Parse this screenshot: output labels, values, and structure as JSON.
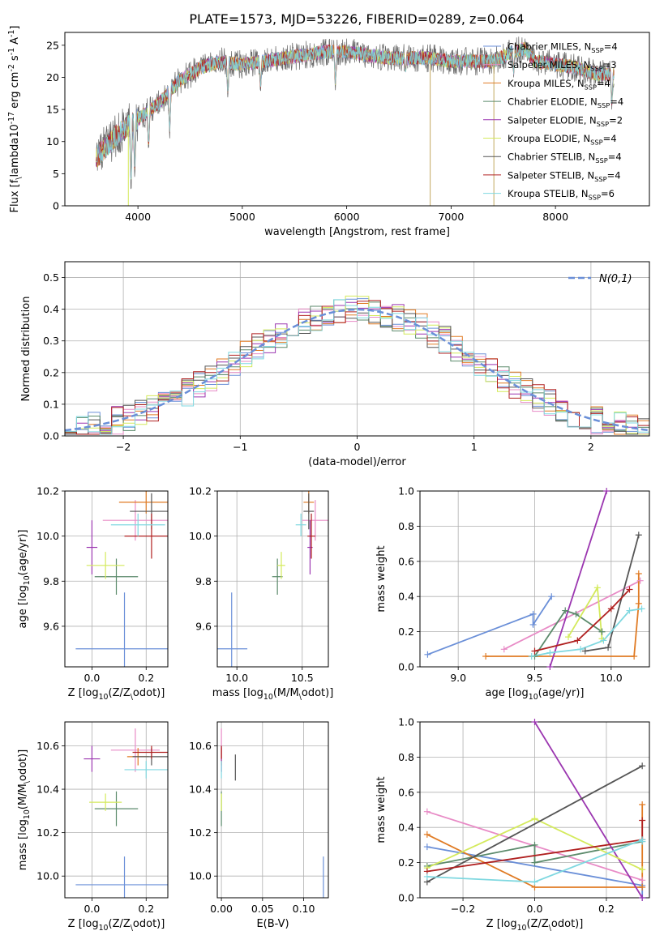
{
  "figure": {
    "title": "PLATE=1573, MJD=53226, FIBERID=0289, z=0.064"
  },
  "series": [
    {
      "name": "Chabrier MILES, N$_{SSP}$=4",
      "color": "#6a8fd8"
    },
    {
      "name": "Salpeter MILES, N$_{SSP}$=3",
      "color": "#e88bc6"
    },
    {
      "name": "Kroupa MILES, N$_{SSP}$=4",
      "color": "#e07b24"
    },
    {
      "name": "Chabrier ELODIE, N$_{SSP}$=4",
      "color": "#5b8a6b"
    },
    {
      "name": "Salpeter ELODIE, N$_{SSP}$=2",
      "color": "#9b36b0"
    },
    {
      "name": "Kroupa ELODIE, N$_{SSP}$=4",
      "color": "#d4ea5c"
    },
    {
      "name": "Chabrier STELIB, N$_{SSP}$=4",
      "color": "#555555"
    },
    {
      "name": "Salpeter STELIB, N$_{SSP}$=4",
      "color": "#b02020"
    },
    {
      "name": "Kroupa STELIB, N$_{SSP}$=6",
      "color": "#7fd8e0"
    }
  ],
  "chart_data": [
    {
      "id": "spectrum",
      "type": "line",
      "xlabel": "wavelength [Angstrom, rest frame]",
      "ylabel": "Flux [f$_\\lambda$10$^{-17}$ erg cm$^{-2}$ s$^{-1}$ A$^{-1}$]",
      "xlim": [
        3300,
        8900
      ],
      "ylim": [
        0,
        27
      ],
      "xticks": [
        4000,
        5000,
        6000,
        7000,
        8000
      ],
      "yticks": [
        0,
        5,
        10,
        15,
        20,
        25
      ],
      "grid": false,
      "legend": "upper right",
      "continuum": {
        "x": [
          3600,
          3800,
          4000,
          4200,
          4400,
          4600,
          4800,
          5000,
          5200,
          5400,
          5600,
          5800,
          6000,
          6200,
          6400,
          6600,
          6800,
          7000,
          7200,
          7400,
          7600,
          7700,
          7800,
          8000,
          8200,
          8400,
          8560
        ],
        "y": [
          7.5,
          11,
          13.5,
          16,
          19.5,
          21.5,
          22.5,
          22,
          22.5,
          23,
          23.5,
          24,
          24,
          23.5,
          23,
          23,
          23,
          22.5,
          22.5,
          22.5,
          24,
          24.5,
          22.5,
          22,
          21.5,
          20.5,
          20.5
        ]
      },
      "absorptions": [
        {
          "x": 3934,
          "y": 1.5
        },
        {
          "x": 3969,
          "y": 4
        },
        {
          "x": 4102,
          "y": 8
        },
        {
          "x": 4304,
          "y": 10.5
        },
        {
          "x": 4861,
          "y": 16.5
        },
        {
          "x": 5175,
          "y": 17.5
        },
        {
          "x": 5892,
          "y": 18
        },
        {
          "x": 6563,
          "y": 20.5
        },
        {
          "x": 7600,
          "y": 20
        },
        {
          "x": 8540,
          "y": 15
        }
      ],
      "spikes": [
        {
          "x": 3908,
          "y": 0
        },
        {
          "x": 6800,
          "y": 0
        },
        {
          "x": 7410,
          "y": 0
        }
      ]
    },
    {
      "id": "residuals",
      "type": "histogram",
      "xlabel": "(data-model)/error",
      "ylabel": "Normed distribution",
      "xlim": [
        -2.5,
        2.5
      ],
      "ylim": [
        0,
        0.55
      ],
      "xticks": [
        -2,
        -1,
        0,
        1,
        2
      ],
      "yticks": [
        0.0,
        0.1,
        0.2,
        0.3,
        0.4,
        0.5
      ],
      "grid": true,
      "legend": "upper right",
      "gaussian_label": "$\\mathcal{N}(0,1)$",
      "gaussian_color": "#6a8fd8",
      "bin_width": 0.1,
      "bin_start": -2.5
    },
    {
      "id": "age_vs_Z",
      "type": "errorbar",
      "xlabel": "Z [log$_{10}$(Z/Z$_\\odot$)]",
      "ylabel": "age  [log$_{10}$(age/yr)]",
      "xlim": [
        -0.1,
        0.28
      ],
      "ylim": [
        9.42,
        10.2
      ],
      "xticks": [
        0.0,
        0.2
      ],
      "yticks": [
        9.6,
        9.8,
        10.0,
        10.2
      ],
      "grid": true,
      "points": [
        {
          "x": 0.12,
          "y": 9.5,
          "xerr": 0.18,
          "yerr": 0.25
        },
        {
          "x": 0.16,
          "y": 10.07,
          "xerr": 0.12,
          "yerr": 0.09
        },
        {
          "x": 0.2,
          "y": 10.15,
          "xerr": 0.1,
          "yerr": 0.05
        },
        {
          "x": 0.09,
          "y": 9.82,
          "xerr": 0.08,
          "yerr": 0.08
        },
        {
          "x": 0.0,
          "y": 9.95,
          "xerr": 0.02,
          "yerr": 0.12
        },
        {
          "x": 0.05,
          "y": 9.87,
          "xerr": 0.07,
          "yerr": 0.06
        },
        {
          "x": 0.22,
          "y": 10.11,
          "xerr": 0.08,
          "yerr": 0.08
        },
        {
          "x": 0.22,
          "y": 10.0,
          "xerr": 0.1,
          "yerr": 0.1
        },
        {
          "x": 0.17,
          "y": 10.05,
          "xerr": 0.1,
          "yerr": 0.05
        }
      ]
    },
    {
      "id": "age_vs_mass",
      "type": "errorbar",
      "xlabel": "mass [log$_{10}$(M/M$_\\odot$)]",
      "ylabel": "",
      "xlim": [
        9.85,
        10.7
      ],
      "ylim": [
        9.42,
        10.2
      ],
      "xticks": [
        10.0,
        10.5
      ],
      "yticks": [
        9.6,
        9.8,
        10.0,
        10.2
      ],
      "grid": true,
      "points": [
        {
          "x": 9.96,
          "y": 9.5,
          "xerr": 0.12,
          "yerr": 0.25
        },
        {
          "x": 10.6,
          "y": 10.07,
          "xerr": 0.1,
          "yerr": 0.09
        },
        {
          "x": 10.55,
          "y": 10.15,
          "xerr": 0.04,
          "yerr": 0.05
        },
        {
          "x": 10.31,
          "y": 9.82,
          "xerr": 0.04,
          "yerr": 0.08
        },
        {
          "x": 10.56,
          "y": 9.95,
          "xerr": 0.02,
          "yerr": 0.12
        },
        {
          "x": 10.34,
          "y": 9.87,
          "xerr": 0.03,
          "yerr": 0.06
        },
        {
          "x": 10.55,
          "y": 10.11,
          "xerr": 0.04,
          "yerr": 0.08
        },
        {
          "x": 10.57,
          "y": 10.0,
          "xerr": 0.03,
          "yerr": 0.1
        },
        {
          "x": 10.49,
          "y": 10.05,
          "xerr": 0.04,
          "yerr": 0.05
        }
      ]
    },
    {
      "id": "mass_weight_vs_age",
      "type": "line",
      "xlabel": "age  [log$_{10}$(age/yr)]",
      "ylabel": "mass weight",
      "xlim": [
        8.75,
        10.25
      ],
      "ylim": [
        0,
        1
      ],
      "xticks": [
        9.0,
        9.5,
        10.0
      ],
      "yticks": [
        0.0,
        0.2,
        0.4,
        0.6,
        0.8,
        1.0
      ],
      "grid": true,
      "lines": [
        {
          "x": [
            8.8,
            9.49,
            9.49,
            9.61
          ],
          "y": [
            0.07,
            0.3,
            0.24,
            0.4
          ]
        },
        {
          "x": [
            9.3,
            10.19
          ],
          "y": [
            0.1,
            0.49
          ]
        },
        {
          "x": [
            9.18,
            10.15,
            10.18,
            10.18
          ],
          "y": [
            0.06,
            0.06,
            0.36,
            0.53
          ]
        },
        {
          "x": [
            9.5,
            9.7,
            9.77,
            9.94,
            9.94
          ],
          "y": [
            0.06,
            0.32,
            0.3,
            0.2,
            0.2
          ]
        },
        {
          "x": [
            9.6,
            9.97
          ],
          "y": [
            0.0,
            1.0
          ]
        },
        {
          "x": [
            9.72,
            9.91,
            9.94
          ],
          "y": [
            0.17,
            0.45,
            0.16
          ]
        },
        {
          "x": [
            9.83,
            9.98,
            10.18
          ],
          "y": [
            0.09,
            0.11,
            0.75
          ]
        },
        {
          "x": [
            9.5,
            9.78,
            10.0,
            10.12
          ],
          "y": [
            0.09,
            0.15,
            0.33,
            0.44
          ]
        },
        {
          "x": [
            9.48,
            9.6,
            9.8,
            9.95,
            10.12,
            10.2
          ],
          "y": [
            0.06,
            0.08,
            0.1,
            0.15,
            0.32,
            0.33
          ]
        }
      ]
    },
    {
      "id": "mass_vs_Z",
      "type": "errorbar",
      "xlabel": "Z [log$_{10}$(Z/Z$_\\odot$)]",
      "ylabel": "mass [log$_{10}$(M/M$_\\odot$)]",
      "xlim": [
        -0.1,
        0.28
      ],
      "ylim": [
        9.9,
        10.71
      ],
      "xticks": [
        0.0,
        0.2
      ],
      "yticks": [
        10.0,
        10.2,
        10.4,
        10.6
      ],
      "grid": true,
      "points": [
        {
          "x": 0.12,
          "y": 9.96,
          "xerr": 0.18,
          "yerr": 0.13
        },
        {
          "x": 0.16,
          "y": 10.58,
          "xerr": 0.09,
          "yerr": 0.1
        },
        {
          "x": 0.17,
          "y": 10.55,
          "xerr": 0.04,
          "yerr": 0.04
        },
        {
          "x": 0.09,
          "y": 10.31,
          "xerr": 0.08,
          "yerr": 0.08
        },
        {
          "x": 0.0,
          "y": 10.54,
          "xerr": 0.03,
          "yerr": 0.06
        },
        {
          "x": 0.05,
          "y": 10.34,
          "xerr": 0.06,
          "yerr": 0.04
        },
        {
          "x": 0.22,
          "y": 10.55,
          "xerr": 0.07,
          "yerr": 0.04
        },
        {
          "x": 0.22,
          "y": 10.57,
          "xerr": 0.07,
          "yerr": 0.03
        },
        {
          "x": 0.2,
          "y": 10.49,
          "xerr": 0.08,
          "yerr": 0.04
        }
      ]
    },
    {
      "id": "mass_vs_ebv",
      "type": "errorbar",
      "xlabel": "E(B-V)",
      "ylabel": "",
      "xlim": [
        -0.005,
        0.13
      ],
      "ylim": [
        9.9,
        10.71
      ],
      "xticks": [
        0.0,
        0.05,
        0.1
      ],
      "yticks": [
        10.0,
        10.2,
        10.4,
        10.6
      ],
      "grid": true,
      "points": [
        {
          "x": 0.124,
          "y": 9.96,
          "xerr": 0.0,
          "yerr": 0.13
        },
        {
          "x": 0.0,
          "y": 10.58,
          "xerr": 0.0,
          "yerr": 0.1
        },
        {
          "x": 0.0,
          "y": 10.55,
          "xerr": 0.0,
          "yerr": 0.04
        },
        {
          "x": 0.0,
          "y": 10.31,
          "xerr": 0.0,
          "yerr": 0.08
        },
        {
          "x": 0.0,
          "y": 10.54,
          "xerr": 0.0,
          "yerr": 0.06
        },
        {
          "x": 0.0,
          "y": 10.34,
          "xerr": 0.0,
          "yerr": 0.04
        },
        {
          "x": 0.017,
          "y": 10.5,
          "xerr": 0.0,
          "yerr": 0.06
        },
        {
          "x": 0.0,
          "y": 10.57,
          "xerr": 0.0,
          "yerr": 0.03
        },
        {
          "x": 0.0,
          "y": 10.49,
          "xerr": 0.0,
          "yerr": 0.04
        }
      ]
    },
    {
      "id": "mass_weight_vs_Z",
      "type": "line",
      "xlabel": "Z [log$_{10}$(Z/Z$_\\odot$)]",
      "ylabel": "mass weight",
      "xlim": [
        -0.32,
        0.32
      ],
      "ylim": [
        0,
        1
      ],
      "xticks": [
        -0.2,
        0.0,
        0.2
      ],
      "yticks": [
        0.0,
        0.2,
        0.4,
        0.6,
        0.8,
        1.0
      ],
      "grid": true,
      "lines": [
        {
          "x": [
            -0.3,
            0.3,
            0.3
          ],
          "y": [
            0.29,
            0.07,
            0.0
          ]
        },
        {
          "x": [
            -0.3,
            0.3
          ],
          "y": [
            0.49,
            0.1
          ]
        },
        {
          "x": [
            -0.3,
            0.0,
            0.3,
            0.3
          ],
          "y": [
            0.36,
            0.06,
            0.06,
            0.53
          ]
        },
        {
          "x": [
            -0.3,
            0.0,
            0.0,
            0.3
          ],
          "y": [
            0.18,
            0.3,
            0.2,
            0.32
          ]
        },
        {
          "x": [
            0.0,
            0.3
          ],
          "y": [
            1.0,
            0.0
          ]
        },
        {
          "x": [
            -0.3,
            0.0,
            0.3
          ],
          "y": [
            0.17,
            0.45,
            0.16
          ]
        },
        {
          "x": [
            -0.3,
            0.3
          ],
          "y": [
            0.09,
            0.75
          ]
        },
        {
          "x": [
            -0.3,
            0.3,
            0.3
          ],
          "y": [
            0.15,
            0.33,
            0.44
          ]
        },
        {
          "x": [
            -0.3,
            0.0,
            0.3,
            0.3
          ],
          "y": [
            0.12,
            0.09,
            0.33,
            0.32
          ]
        }
      ]
    }
  ]
}
